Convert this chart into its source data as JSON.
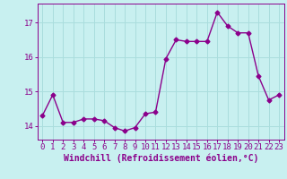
{
  "x": [
    0,
    1,
    2,
    3,
    4,
    5,
    6,
    7,
    8,
    9,
    10,
    11,
    12,
    13,
    14,
    15,
    16,
    17,
    18,
    19,
    20,
    21,
    22,
    23
  ],
  "y": [
    14.3,
    14.9,
    14.1,
    14.1,
    14.2,
    14.2,
    14.15,
    13.95,
    13.85,
    13.95,
    14.35,
    14.4,
    15.95,
    16.5,
    16.45,
    16.45,
    16.45,
    17.3,
    16.9,
    16.7,
    16.7,
    15.45,
    14.75,
    14.9
  ],
  "line_color": "#8B008B",
  "marker": "D",
  "markersize": 2.5,
  "linewidth": 1.0,
  "bg_color": "#c8f0f0",
  "grid_color": "#aadddd",
  "xlabel": "Windchill (Refroidissement éolien,°C)",
  "xlabel_fontsize": 7,
  "tick_fontsize": 6.5,
  "ylim": [
    13.6,
    17.55
  ],
  "xlim": [
    -0.5,
    23.5
  ],
  "yticks": [
    14,
    15,
    16,
    17
  ],
  "xticks": [
    0,
    1,
    2,
    3,
    4,
    5,
    6,
    7,
    8,
    9,
    10,
    11,
    12,
    13,
    14,
    15,
    16,
    17,
    18,
    19,
    20,
    21,
    22,
    23
  ]
}
